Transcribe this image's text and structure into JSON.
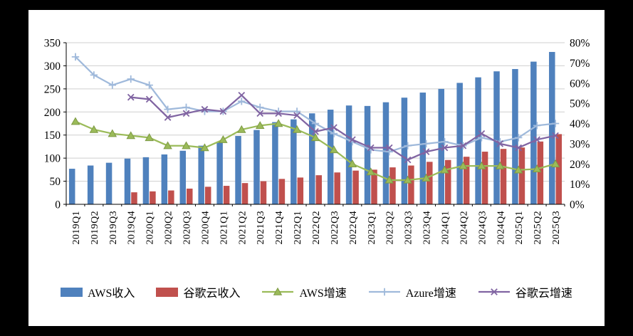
{
  "chart_data": {
    "type": "bar",
    "title": "",
    "legend_position": "bottom",
    "grid": true,
    "categories": [
      "2019Q1",
      "2019Q2",
      "2019Q3",
      "2019Q4",
      "2020Q1",
      "2020Q2",
      "2020Q3",
      "2020Q4",
      "2021Q1",
      "2021Q2",
      "2021Q3",
      "2021Q4",
      "2022Q1",
      "2022Q2",
      "2022Q3",
      "2022Q4",
      "2023Q1",
      "2023Q2",
      "2023Q3",
      "2023Q4",
      "2024Q1",
      "2024Q2",
      "2024Q3",
      "2024Q4",
      "2025Q1",
      "2025Q2",
      "2025Q3"
    ],
    "bar_series": [
      {
        "name": "AWS收入",
        "color": "#4F81BD",
        "axis": "left",
        "values": [
          77,
          84,
          90,
          99,
          102,
          108,
          116,
          127,
          135,
          148,
          161,
          178,
          184,
          197,
          205,
          214,
          213,
          221,
          231,
          242,
          250,
          263,
          275,
          288,
          293,
          309,
          330
        ]
      },
      {
        "name": "谷歌云收入",
        "color": "#C0504D",
        "axis": "left",
        "values": [
          null,
          null,
          null,
          26,
          28,
          30,
          34,
          38,
          40,
          46,
          50,
          55,
          58,
          63,
          69,
          73,
          75,
          80,
          84,
          92,
          96,
          103,
          114,
          120,
          123,
          136,
          152
        ]
      }
    ],
    "line_series": [
      {
        "name": "AWS增速",
        "color": "#9BBB59",
        "edge": "#7E9A45",
        "marker": "triangle",
        "axis": "right",
        "values": [
          41,
          37,
          35,
          34,
          33,
          29,
          29,
          28,
          32,
          37,
          39,
          40,
          37,
          33,
          27,
          20,
          16,
          12,
          12,
          13,
          17,
          19,
          19,
          19,
          17,
          17.5,
          20
        ]
      },
      {
        "name": "Azure增速",
        "color": "#9FB9DB",
        "marker": "plus",
        "axis": "right",
        "values": [
          73,
          64,
          59,
          62,
          59,
          47,
          48,
          46,
          46,
          51,
          48,
          46,
          46,
          40,
          35,
          31,
          27,
          26,
          29,
          30,
          31,
          29,
          33,
          31,
          33,
          39,
          40
        ]
      },
      {
        "name": "谷歌云增速",
        "color": "#8064A2",
        "marker": "x",
        "axis": "right",
        "values": [
          null,
          null,
          null,
          53,
          52,
          43,
          45,
          47,
          46,
          54,
          45,
          45,
          44,
          36,
          38,
          32,
          28,
          28,
          22,
          26,
          28,
          29,
          35,
          30,
          28,
          32,
          34
        ]
      }
    ],
    "left_axis": {
      "min": 0,
      "max": 350,
      "step": 50,
      "labels": [
        "0",
        "50",
        "100",
        "150",
        "200",
        "250",
        "300",
        "350"
      ]
    },
    "right_axis": {
      "min": 0,
      "max": 80,
      "step": 10,
      "labels": [
        "0%",
        "10%",
        "20%",
        "30%",
        "40%",
        "50%",
        "60%",
        "70%",
        "80%"
      ]
    }
  }
}
